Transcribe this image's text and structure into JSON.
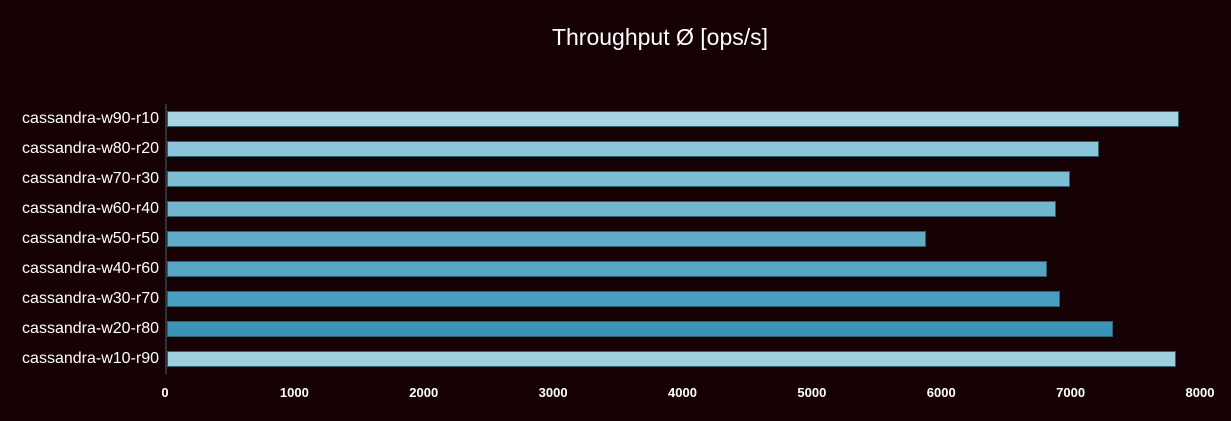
{
  "chart_data": {
    "type": "bar",
    "orientation": "horizontal",
    "title": "Throughput Ø [ops/s]",
    "categories": [
      "cassandra-w90-r10",
      "cassandra-w80-r20",
      "cassandra-w70-r30",
      "cassandra-w60-r40",
      "cassandra-w50-r50",
      "cassandra-w40-r60",
      "cassandra-w30-r70",
      "cassandra-w20-r80",
      "cassandra-w10-r90"
    ],
    "values": [
      7820,
      7200,
      6980,
      6870,
      5870,
      6800,
      6900,
      7310,
      7800
    ],
    "bar_colors": [
      "#a7d3e2",
      "#8cc5d9",
      "#7dbdd4",
      "#72b6ce",
      "#62abc7",
      "#55a6c3",
      "#469ec3",
      "#3b93b8",
      "#9ccede"
    ],
    "xlabel": "",
    "ylabel": "",
    "xlim": [
      0,
      8000
    ],
    "x_ticks": [
      0,
      1000,
      2000,
      3000,
      4000,
      5000,
      6000,
      7000,
      8000
    ],
    "grid": false,
    "legend": "none",
    "colors": {
      "background": "#160205",
      "axis_line": "#28343e",
      "bar_border": "#31606f",
      "text": "#ffffff"
    }
  }
}
